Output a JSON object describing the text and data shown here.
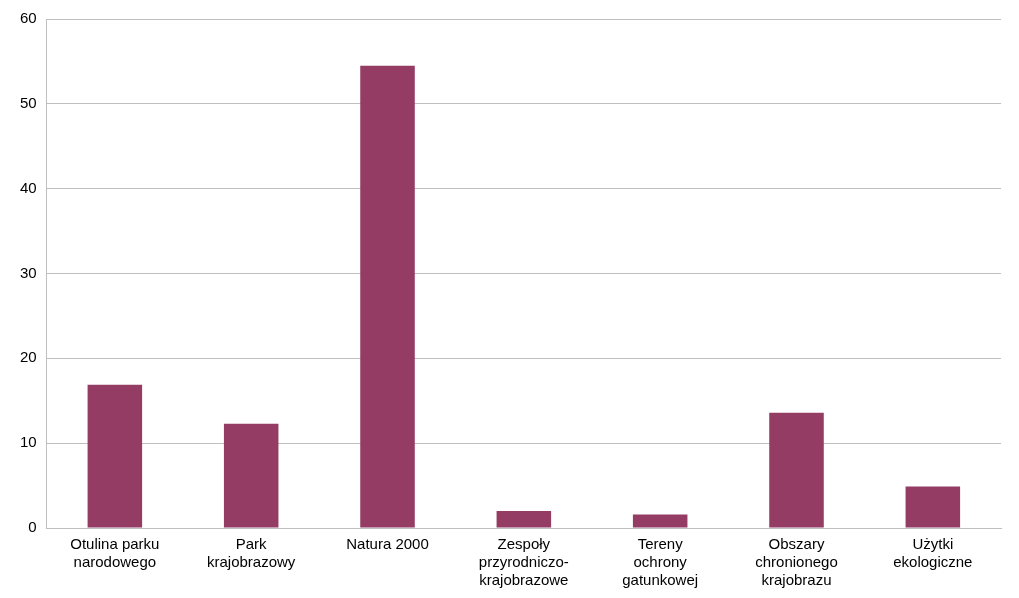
{
  "chart_data": {
    "type": "bar",
    "categories": [
      "Otulina parku narodowego",
      "Park krajobrazowy",
      "Natura 2000",
      "Zespoły przyrodniczo-krajobrazowe",
      "Tereny ochrony gatunkowej",
      "Obszary chronionego krajobrazu",
      "Użytki ekologiczne"
    ],
    "values": [
      16.9,
      12.3,
      54.5,
      2.0,
      1.6,
      13.6,
      4.9
    ],
    "color": "#943c64",
    "ylim": [
      0,
      60
    ],
    "yticks": [
      0,
      10,
      20,
      30,
      40,
      50,
      60
    ],
    "grid": "y",
    "legend": false
  }
}
